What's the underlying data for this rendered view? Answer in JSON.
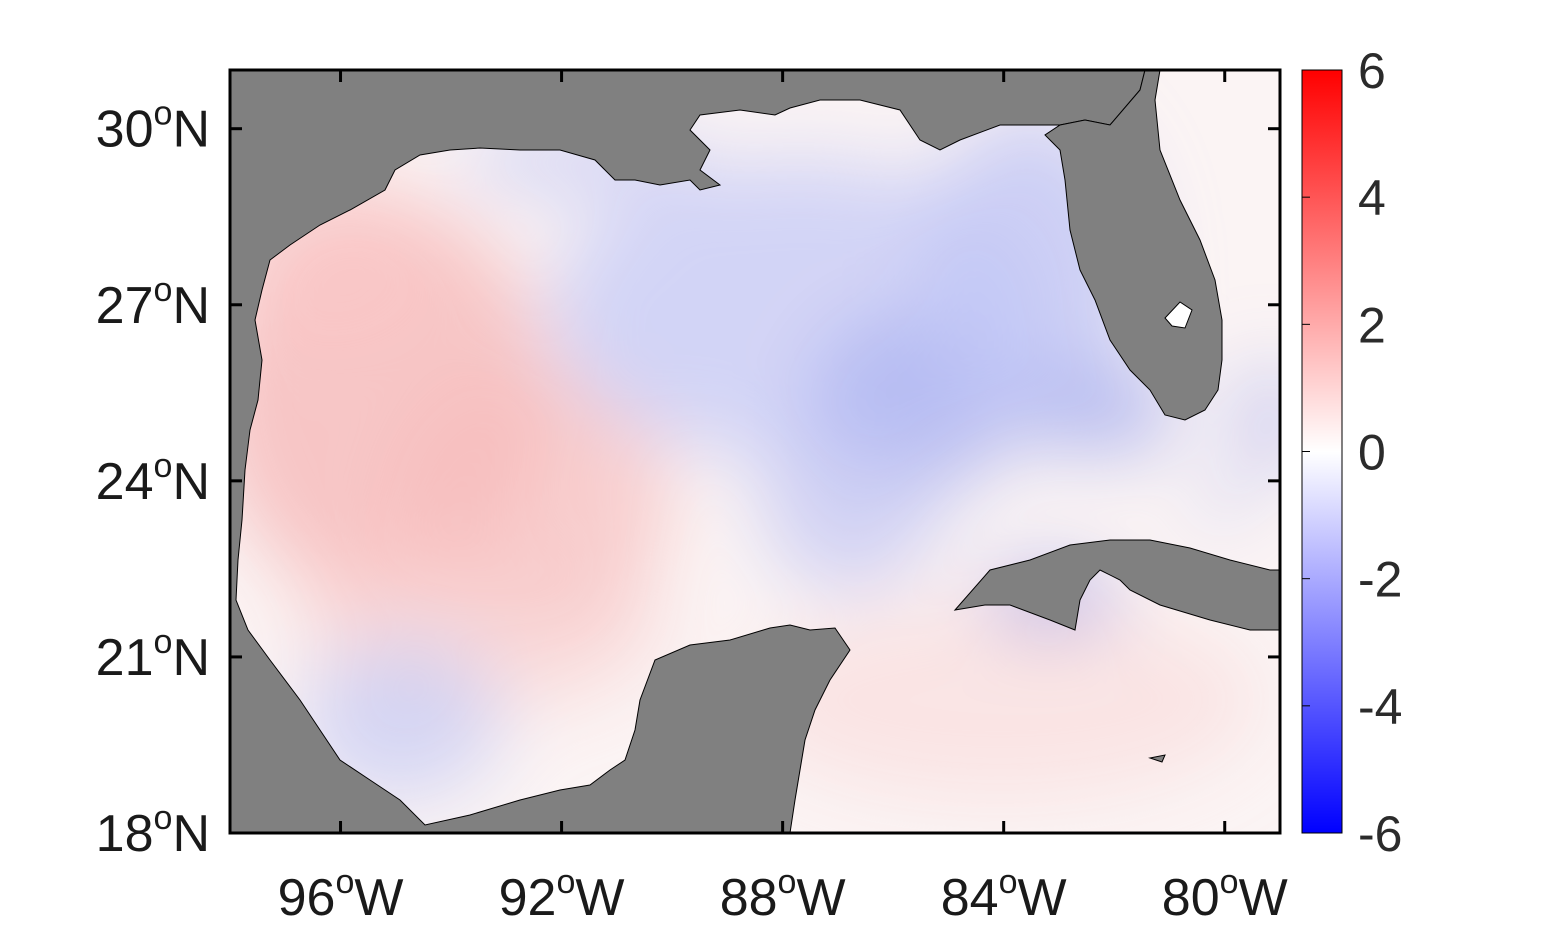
{
  "map": {
    "lat_ticks": [
      {
        "deg": "30",
        "hemi": "N",
        "value": 30
      },
      {
        "deg": "27",
        "hemi": "N",
        "value": 27
      },
      {
        "deg": "24",
        "hemi": "N",
        "value": 24
      },
      {
        "deg": "21",
        "hemi": "N",
        "value": 21
      },
      {
        "deg": "18",
        "hemi": "N",
        "value": 18
      }
    ],
    "lon_ticks": [
      {
        "deg": "96",
        "hemi": "W",
        "value": -96
      },
      {
        "deg": "92",
        "hemi": "W",
        "value": -92
      },
      {
        "deg": "88",
        "hemi": "W",
        "value": -88
      },
      {
        "deg": "84",
        "hemi": "W",
        "value": -84
      },
      {
        "deg": "80",
        "hemi": "W",
        "value": -80
      }
    ],
    "degree_symbol": "o",
    "lon_range": [
      -98,
      -79
    ],
    "lat_range": [
      18,
      31
    ],
    "land_color": "#808080"
  },
  "colorbar": {
    "min": -6,
    "max": 6,
    "ticks": [
      "6",
      "4",
      "2",
      "0",
      "-2",
      "-4",
      "-6"
    ],
    "colors": {
      "low": "#0000ff",
      "mid": "#ffffff",
      "high": "#ff0000"
    }
  }
}
